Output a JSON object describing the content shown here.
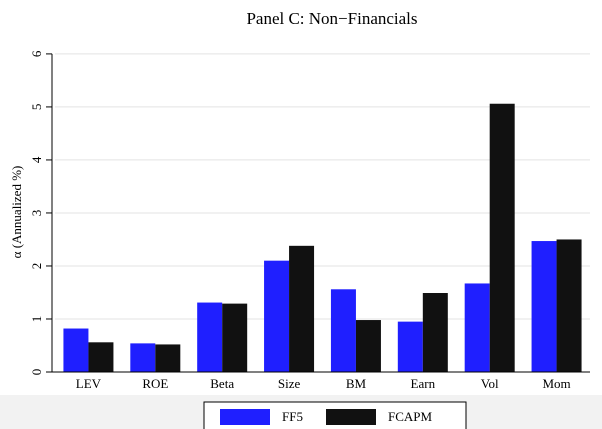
{
  "chart_data": {
    "type": "bar",
    "title": "Panel C: Non−Financials",
    "y_label": "α (Annualized %)",
    "categories": [
      "LEV",
      "ROE",
      "Beta",
      "Size",
      "BM",
      "Earn",
      "Vol",
      "Mom"
    ],
    "series": [
      {
        "name": "FF5",
        "color": "#1f1fff",
        "values": [
          0.82,
          0.54,
          1.31,
          2.1,
          1.56,
          0.95,
          1.67,
          2.47
        ]
      },
      {
        "name": "FCAPM",
        "color": "#111111",
        "values": [
          0.56,
          0.52,
          1.29,
          2.38,
          0.98,
          1.49,
          5.06,
          2.5
        ]
      }
    ],
    "ylim": [
      0,
      6.3
    ],
    "yticks": [
      0,
      1,
      2,
      3,
      4,
      5,
      6
    ],
    "grid": true,
    "legend": "bottom"
  }
}
